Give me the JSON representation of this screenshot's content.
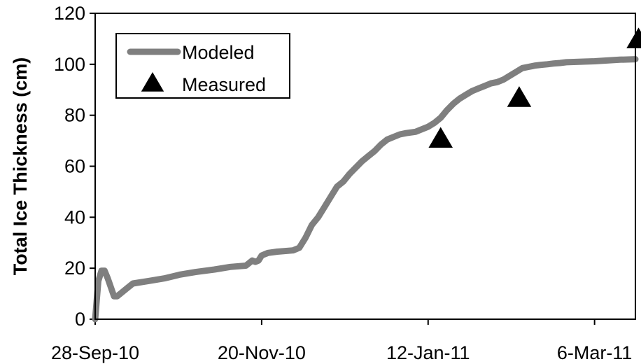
{
  "chart_data": {
    "type": "line",
    "title": "",
    "xlabel": "",
    "ylabel": "Total Ice Thickness (cm)",
    "x_type": "date",
    "xlim": [
      "2010-09-28",
      "2011-03-19"
    ],
    "ylim": [
      0,
      120
    ],
    "x_ticks": [
      {
        "value": "2010-09-28",
        "label": "28-Sep-10"
      },
      {
        "value": "2010-11-20",
        "label": "20-Nov-10"
      },
      {
        "value": "2011-01-12",
        "label": "12-Jan-11"
      },
      {
        "value": "2011-03-06",
        "label": "6-Mar-11"
      }
    ],
    "y_ticks": [
      0,
      20,
      40,
      60,
      80,
      100,
      120
    ],
    "y_tick_labels": [
      "0",
      "20",
      "40",
      "60",
      "80",
      "100",
      "120"
    ],
    "grid": false,
    "legend_position": "top-left",
    "colors": {
      "modeled": "#7f7f7f",
      "measured": "#000000",
      "axis": "#000000"
    },
    "series": [
      {
        "name": "Modeled",
        "style": "line",
        "x": [
          "2010-09-28",
          "2010-09-29",
          "2010-09-30",
          "2010-10-01",
          "2010-10-02",
          "2010-10-04",
          "2010-10-05",
          "2010-10-06",
          "2010-10-08",
          "2010-10-10",
          "2010-10-15",
          "2010-10-20",
          "2010-10-25",
          "2010-10-30",
          "2010-11-05",
          "2010-11-10",
          "2010-11-15",
          "2010-11-17",
          "2010-11-18",
          "2010-11-19",
          "2010-11-20",
          "2010-11-22",
          "2010-11-25",
          "2010-11-30",
          "2010-12-02",
          "2010-12-04",
          "2010-12-06",
          "2010-12-08",
          "2010-12-10",
          "2010-12-12",
          "2010-12-14",
          "2010-12-16",
          "2010-12-18",
          "2010-12-20",
          "2010-12-22",
          "2010-12-24",
          "2010-12-26",
          "2010-12-28",
          "2010-12-30",
          "2011-01-01",
          "2011-01-03",
          "2011-01-05",
          "2011-01-08",
          "2011-01-10",
          "2011-01-12",
          "2011-01-14",
          "2011-01-16",
          "2011-01-18",
          "2011-01-20",
          "2011-01-22",
          "2011-01-24",
          "2011-01-26",
          "2011-01-28",
          "2011-01-30",
          "2011-02-01",
          "2011-02-03",
          "2011-02-05",
          "2011-02-07",
          "2011-02-09",
          "2011-02-11",
          "2011-02-13",
          "2011-02-15",
          "2011-02-17",
          "2011-02-19",
          "2011-02-21",
          "2011-02-23",
          "2011-02-25",
          "2011-03-01",
          "2011-03-06",
          "2011-03-10",
          "2011-03-14",
          "2011-03-19"
        ],
        "values": [
          0,
          15,
          19,
          19,
          16,
          9,
          9,
          10,
          12,
          14,
          15,
          16,
          17.5,
          18.5,
          19.5,
          20.5,
          21,
          23,
          22.5,
          23,
          25,
          26,
          26.5,
          27,
          28,
          32,
          37,
          40,
          44,
          48,
          52,
          54,
          57,
          59.5,
          62,
          64,
          66,
          68.5,
          70.5,
          71.5,
          72.5,
          73,
          73.5,
          74.5,
          75.5,
          77,
          79,
          82,
          84.5,
          86.5,
          88,
          89.5,
          90.5,
          91.5,
          92.5,
          93,
          94,
          95.5,
          97,
          98.5,
          99,
          99.5,
          99.8,
          100,
          100.3,
          100.5,
          100.8,
          101,
          101.2,
          101.5,
          101.8,
          102
        ]
      },
      {
        "name": "Measured",
        "style": "marker",
        "x": [
          "2011-01-16",
          "2011-02-10",
          "2011-03-20"
        ],
        "values": [
          71,
          87,
          110
        ]
      }
    ]
  }
}
